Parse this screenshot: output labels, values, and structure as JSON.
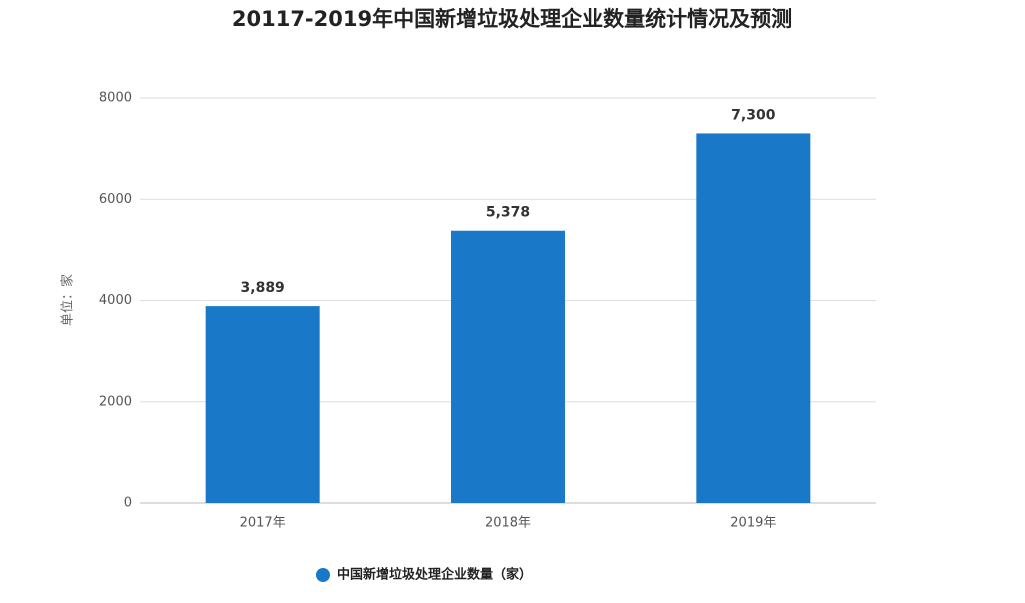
{
  "chart_data": {
    "type": "bar",
    "title": "20117-2019年中国新增垃圾处理企业数量统计情况及预测",
    "y_label": "单位：家",
    "categories": [
      "2017年",
      "2018年",
      "2019年"
    ],
    "series": [
      {
        "name": "中国新增垃圾处理企业数量（家）",
        "color": "#1979c8",
        "values": [
          3889,
          5378,
          7300
        ],
        "value_labels": [
          "3,889",
          "5,378",
          "7,300"
        ]
      }
    ],
    "ylim": [
      0,
      8000
    ],
    "yticks": [
      0,
      2000,
      4000,
      6000,
      8000
    ],
    "grid": true,
    "legend": "bottom"
  }
}
